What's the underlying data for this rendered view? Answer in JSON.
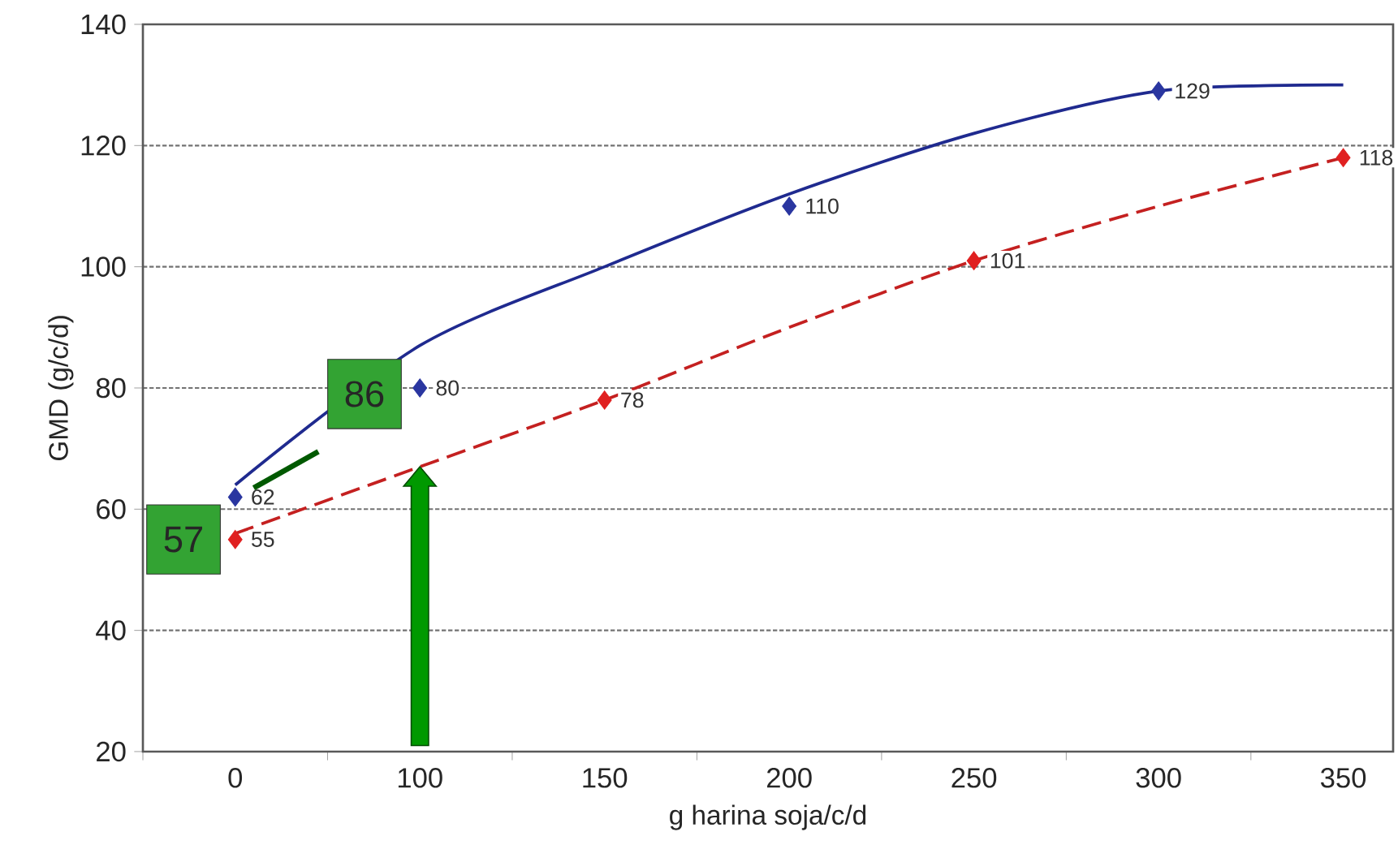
{
  "chart_data": {
    "type": "scatter",
    "xlabel": "g harina soja/c/d",
    "ylabel": "GMD (g/c/d)",
    "categories": [
      "0",
      "100",
      "150",
      "200",
      "250",
      "300",
      "350"
    ],
    "ylim": [
      20,
      140
    ],
    "yticks": [
      20,
      40,
      60,
      80,
      100,
      120,
      140
    ],
    "grid": "y",
    "marker": "diamond",
    "series": [
      {
        "type": "line",
        "color": "#1f2a8f",
        "line_style": "solid",
        "marker": "none",
        "values": [
          64,
          87,
          100,
          112,
          122,
          129,
          130
        ]
      },
      {
        "type": "line",
        "color": "#c42020",
        "line_style": "dashed",
        "marker": "none",
        "values": [
          56,
          67,
          78,
          90,
          101,
          110,
          118
        ]
      },
      {
        "color": "#2a36a0",
        "values": [
          62,
          80,
          null,
          110,
          null,
          129,
          null
        ],
        "value_labels": [
          "62",
          "80",
          null,
          "110",
          null,
          "129",
          null
        ]
      },
      {
        "color": "#e02020",
        "values": [
          55,
          null,
          78,
          null,
          101,
          null,
          118
        ],
        "value_labels": [
          "55",
          null,
          "78",
          null,
          "101",
          null,
          "118"
        ]
      }
    ],
    "annotations": [
      {
        "text": "57",
        "x": "0",
        "y": 55
      },
      {
        "text": "86",
        "x": "100",
        "y": 79
      }
    ]
  }
}
